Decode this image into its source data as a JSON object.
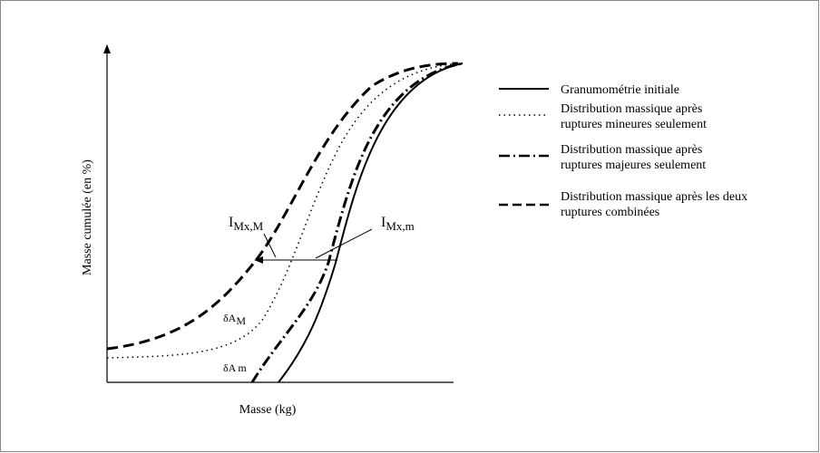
{
  "y_axis_label": "Masse cumulée (en %)",
  "x_axis_label": "Masse (kg)",
  "legend": [
    {
      "lines": [
        "Granumométrie initiale"
      ]
    },
    {
      "lines": [
        "Distribution massique après",
        "ruptures mineures seulement"
      ]
    },
    {
      "lines": [
        "Distribution massique après",
        "ruptures majeures seulement"
      ]
    },
    {
      "lines": [
        "Distribution massique après les deux",
        "ruptures combinées"
      ]
    }
  ],
  "annotations": [
    {
      "main": "I",
      "sub": "Mx,M"
    },
    {
      "main": "I",
      "sub": "Mx,m"
    },
    {
      "main": "δA",
      "sub": "M"
    },
    {
      "main": "δA",
      "sub": "m"
    }
  ]
}
